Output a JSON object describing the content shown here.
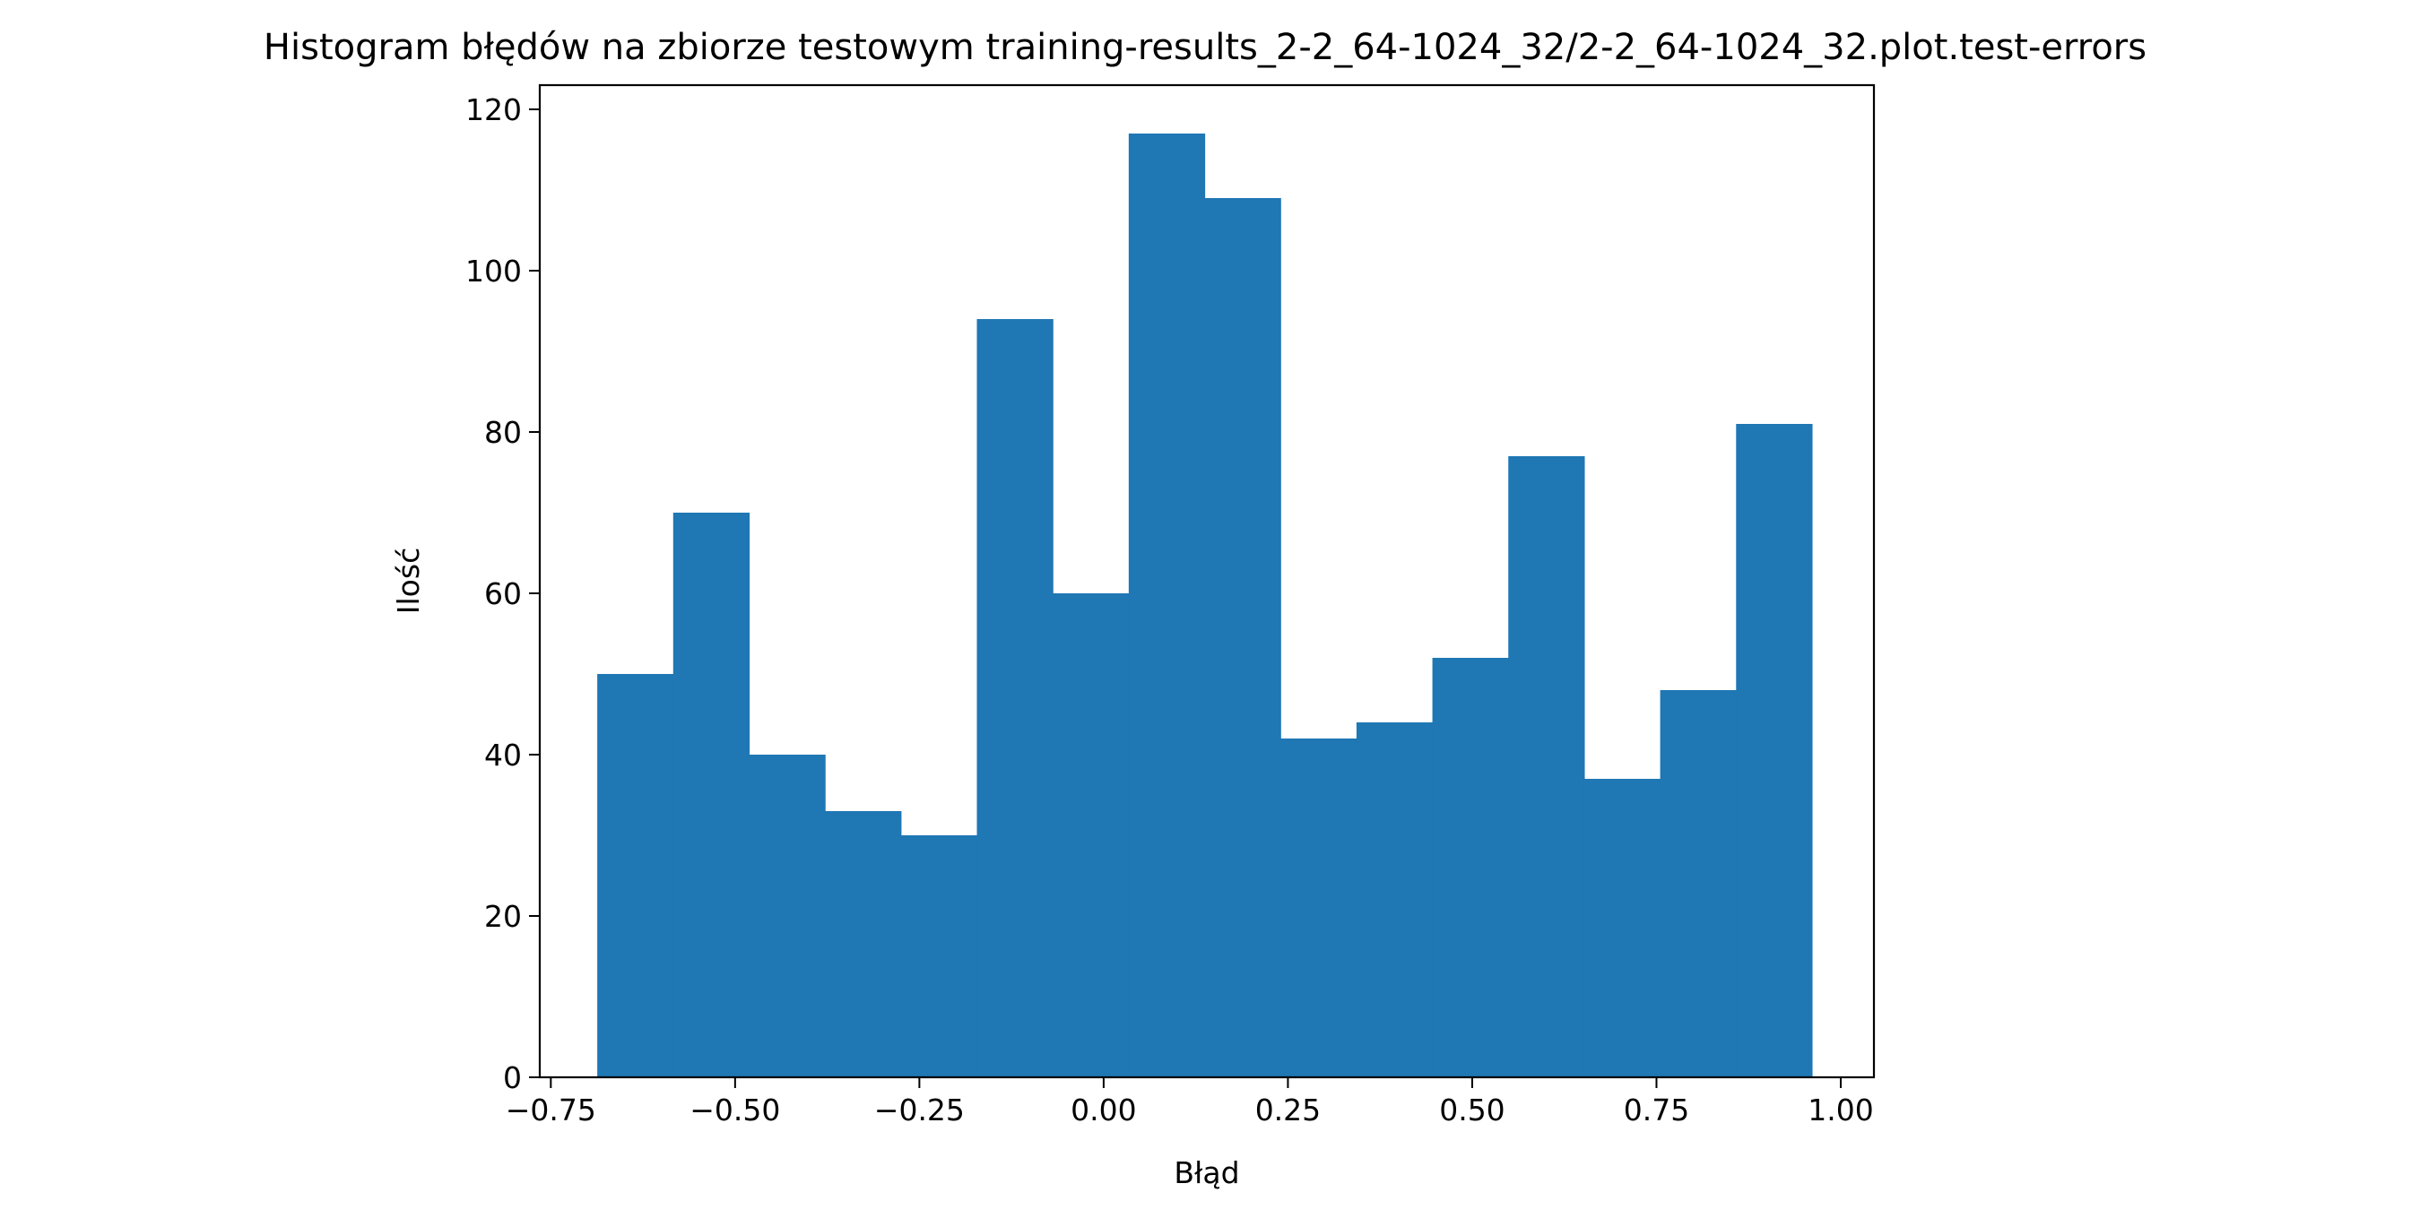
{
  "chart_data": {
    "type": "bar",
    "subtype": "histogram",
    "title": "Histogram błędów na zbiorze testowym training-results_2-2_64-1024_32/2-2_64-1024_32.plot.test-errors",
    "xlabel": "Błąd",
    "ylabel": "Ilość",
    "xlim": [
      -0.765,
      1.045
    ],
    "ylim": [
      0,
      123
    ],
    "xticks": [
      -0.75,
      -0.5,
      -0.25,
      0.0,
      0.25,
      0.5,
      0.75,
      1.0
    ],
    "xtick_labels": [
      "−0.75",
      "−0.50",
      "−0.25",
      "0.00",
      "0.25",
      "0.50",
      "0.75",
      "1.00"
    ],
    "yticks": [
      0,
      20,
      40,
      60,
      80,
      100,
      120
    ],
    "ytick_labels": [
      "0",
      "20",
      "40",
      "60",
      "80",
      "100",
      "120"
    ],
    "bin_edges": [
      -0.687,
      -0.584,
      -0.481,
      -0.378,
      -0.275,
      -0.172,
      -0.069,
      0.034,
      0.137,
      0.24,
      0.343,
      0.446,
      0.549,
      0.652,
      0.755,
      0.858,
      0.961
    ],
    "values": [
      50,
      70,
      40,
      33,
      30,
      94,
      60,
      117,
      109,
      42,
      44,
      52,
      77,
      37,
      48,
      81
    ],
    "bar_color": "#1f77b4",
    "grid": false,
    "legend": "none"
  }
}
